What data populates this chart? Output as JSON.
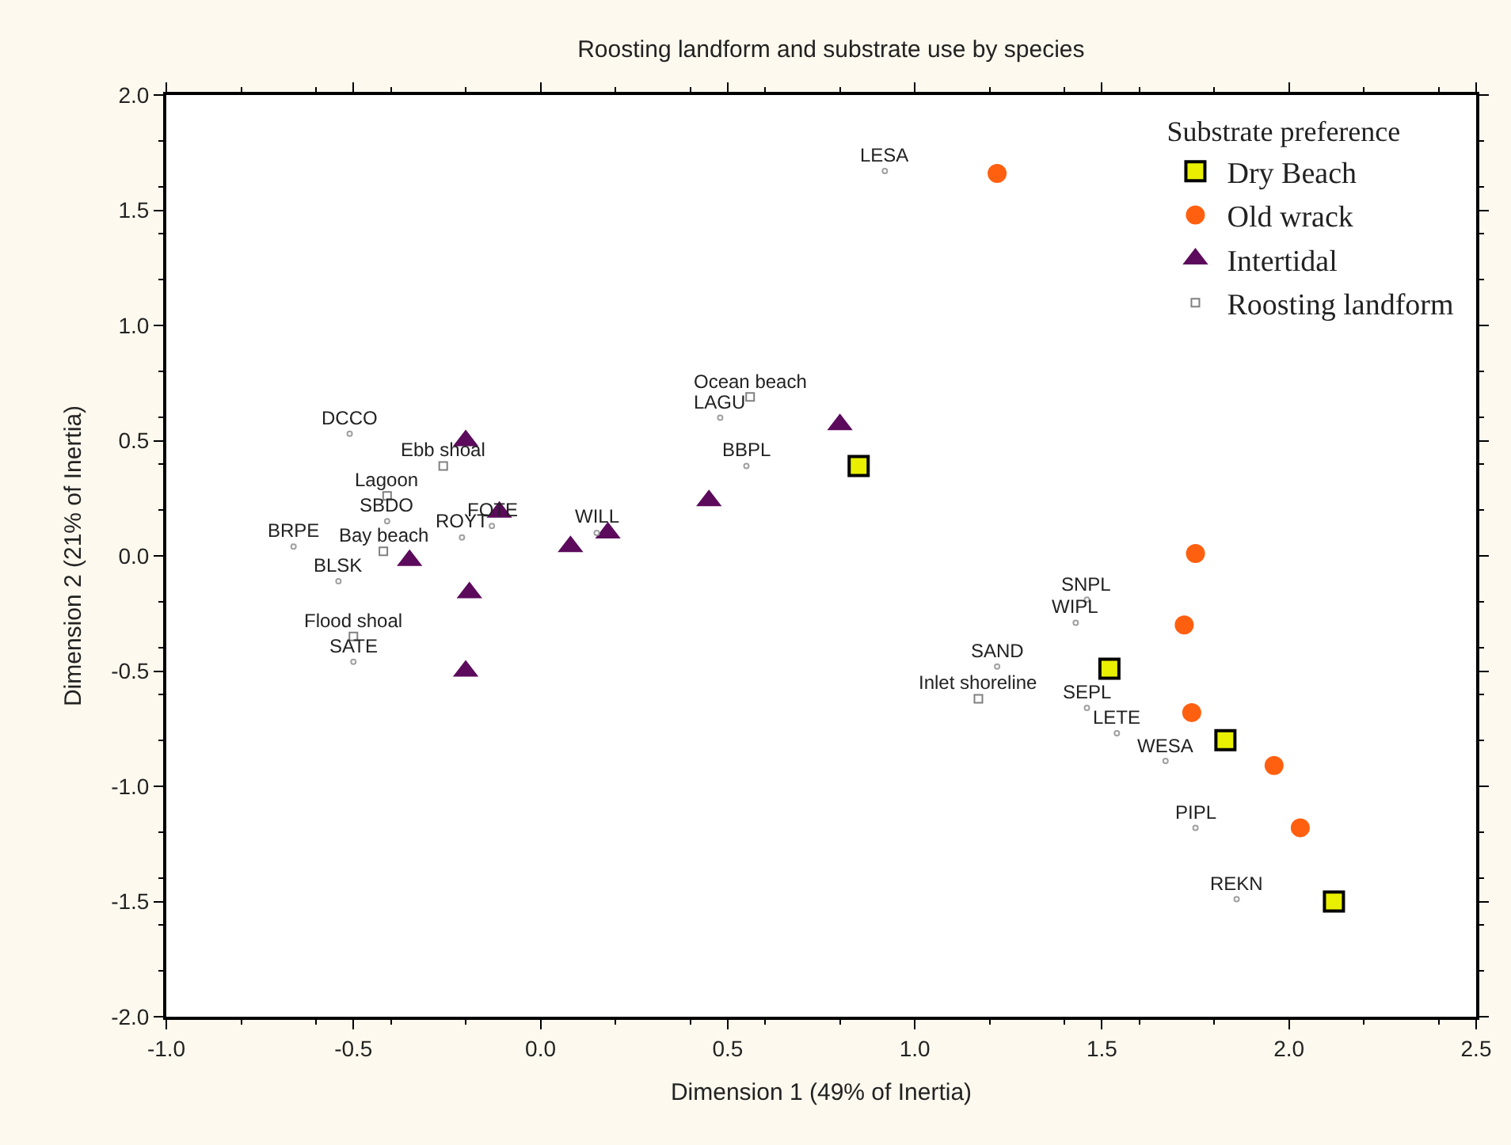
{
  "chart_data": {
    "type": "scatter",
    "title": "Roosting landform and substrate use by species",
    "xlabel": "Dimension 1 (49% of Inertia)",
    "ylabel": "Dimension 2 (21% of Inertia)",
    "legend_title": "Substrate preference",
    "xlim": [
      -1.0,
      2.5
    ],
    "xticks": [
      {
        "value": -1.0,
        "label": "-1.0"
      },
      {
        "value": -0.5,
        "label": "-0.5"
      },
      {
        "value": 0.0,
        "label": "0.0"
      },
      {
        "value": 0.5,
        "label": "0.5"
      },
      {
        "value": 1.0,
        "label": "1.0"
      },
      {
        "value": 1.5,
        "label": "1.5"
      },
      {
        "value": 2.0,
        "label": "2.0"
      },
      {
        "value": 2.5,
        "label": "2.5"
      }
    ],
    "ylim": [
      -2.0,
      2.0
    ],
    "yticks": [
      {
        "value": -2.0,
        "label": "-2.0"
      },
      {
        "value": -1.5,
        "label": "-1.5"
      },
      {
        "value": -1.0,
        "label": "-1.0"
      },
      {
        "value": -0.5,
        "label": "-0.5"
      },
      {
        "value": 0.0,
        "label": "0.0"
      },
      {
        "value": 0.5,
        "label": "0.5"
      },
      {
        "value": 1.0,
        "label": "1.0"
      },
      {
        "value": 1.5,
        "label": "1.5"
      },
      {
        "value": 2.0,
        "label": "2.0"
      }
    ],
    "legend": "top right",
    "series": [
      {
        "name": "Dry Beach",
        "color": "#e8f000",
        "marker": "square",
        "x": [
          0.85,
          1.52,
          1.83,
          2.12
        ],
        "values": [
          0.39,
          -0.49,
          -0.8,
          -1.5
        ]
      },
      {
        "name": "Old wrack",
        "color": "#ff6010",
        "marker": "circle",
        "x": [
          1.22,
          1.75,
          1.72,
          1.74,
          1.96,
          2.03
        ],
        "values": [
          1.66,
          0.01,
          -0.3,
          -0.68,
          -0.91,
          -1.18
        ]
      },
      {
        "name": "Intertidal",
        "color": "#5c0a5c",
        "marker": "triangle",
        "x": [
          0.8,
          0.45,
          0.18,
          0.08,
          -0.11,
          -0.2,
          -0.35,
          -0.19,
          -0.2
        ],
        "values": [
          0.57,
          0.24,
          0.1,
          0.04,
          0.19,
          0.5,
          -0.02,
          -0.16,
          -0.5
        ]
      },
      {
        "name": "Roosting landform",
        "color": "#808080",
        "marker": "square",
        "x": [
          0.56,
          -0.26,
          -0.41,
          -0.42,
          -0.5,
          1.17
        ],
        "values": [
          0.69,
          0.39,
          0.26,
          0.02,
          -0.35,
          -0.62
        ]
      },
      {
        "color": "#a0a0a0",
        "marker": "circle",
        "x": [
          0.92,
          0.48,
          0.55,
          0.15,
          -0.51,
          -0.41,
          -0.13,
          -0.21,
          -0.66,
          -0.54,
          -0.5,
          1.46,
          1.43,
          1.22,
          1.46,
          1.54,
          1.67,
          1.75,
          1.86
        ],
        "values": [
          1.67,
          0.6,
          0.39,
          0.1,
          0.53,
          0.15,
          0.13,
          0.08,
          0.04,
          -0.11,
          -0.46,
          -0.19,
          -0.29,
          -0.48,
          -0.66,
          -0.77,
          -0.89,
          -1.18,
          -1.49
        ]
      }
    ],
    "annotations": [
      {
        "text": "LESA",
        "x": 0.92,
        "y": 1.67
      },
      {
        "text": "Ocean beach",
        "x": 0.56,
        "y": 0.69
      },
      {
        "text": "LAGU",
        "x": 0.48,
        "y": 0.6
      },
      {
        "text": "BBPL",
        "x": 0.55,
        "y": 0.39
      },
      {
        "text": "WILL",
        "x": 0.15,
        "y": 0.1
      },
      {
        "text": "DCCO",
        "x": -0.51,
        "y": 0.53
      },
      {
        "text": "Ebb shoal",
        "x": -0.26,
        "y": 0.39
      },
      {
        "text": "Lagoon",
        "x": -0.41,
        "y": 0.26
      },
      {
        "text": "SBDO",
        "x": -0.41,
        "y": 0.15
      },
      {
        "text": "FOTE",
        "x": -0.13,
        "y": 0.13
      },
      {
        "text": "ROYT",
        "x": -0.21,
        "y": 0.08
      },
      {
        "text": "BRPE",
        "x": -0.66,
        "y": 0.04
      },
      {
        "text": "Bay beach",
        "x": -0.42,
        "y": 0.02
      },
      {
        "text": "BLSK",
        "x": -0.54,
        "y": -0.11
      },
      {
        "text": "Flood shoal",
        "x": -0.5,
        "y": -0.35
      },
      {
        "text": "SATE",
        "x": -0.5,
        "y": -0.46
      },
      {
        "text": "SNPL",
        "x": 1.46,
        "y": -0.19
      },
      {
        "text": "WIPL",
        "x": 1.43,
        "y": -0.29
      },
      {
        "text": "SAND",
        "x": 1.22,
        "y": -0.48
      },
      {
        "text": "Inlet shoreline",
        "x": 1.17,
        "y": -0.62
      },
      {
        "text": "SEPL",
        "x": 1.46,
        "y": -0.66
      },
      {
        "text": "LETE",
        "x": 1.54,
        "y": -0.77
      },
      {
        "text": "WESA",
        "x": 1.67,
        "y": -0.89
      },
      {
        "text": "PIPL",
        "x": 1.75,
        "y": -1.18
      },
      {
        "text": "REKN",
        "x": 1.86,
        "y": -1.49
      }
    ]
  }
}
